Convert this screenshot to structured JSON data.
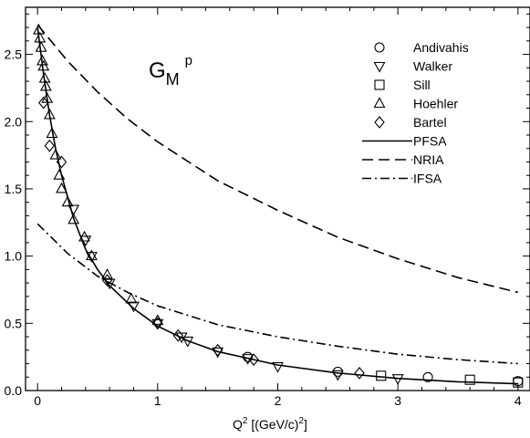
{
  "chart_data": {
    "type": "scatter",
    "title": "G",
    "title_sub": "M",
    "title_sup": "p",
    "xlabel_main": "Q",
    "xlabel_sup": "2",
    "xlabel_units": " [(GeV/c)",
    "xlabel_units_sup": "2",
    "xlabel_close": "]",
    "ylabel": "",
    "xlim": [
      -0.1,
      4.1
    ],
    "ylim": [
      0.0,
      2.85
    ],
    "x_ticks": [
      0,
      1,
      2,
      3,
      4
    ],
    "x_tick_labels": [
      "0",
      "1",
      "2",
      "3",
      "4"
    ],
    "y_ticks": [
      0.0,
      0.5,
      1.0,
      1.5,
      2.0,
      2.5
    ],
    "y_tick_labels": [
      "0.0",
      "0.5",
      "1.0",
      "1.5",
      "2.0",
      "2.5"
    ],
    "legend_position": "top-right",
    "legend": [
      {
        "label": "Andivahis",
        "kind": "marker",
        "marker": "circle"
      },
      {
        "label": "Walker",
        "kind": "marker",
        "marker": "triangle-down"
      },
      {
        "label": "Sill",
        "kind": "marker",
        "marker": "square"
      },
      {
        "label": "Hoehler",
        "kind": "marker",
        "marker": "triangle-up"
      },
      {
        "label": "Bartel",
        "kind": "marker",
        "marker": "diamond"
      },
      {
        "label": "PFSA",
        "kind": "line",
        "dash": "solid"
      },
      {
        "label": "NRIA",
        "kind": "line",
        "dash": "dashed"
      },
      {
        "label": "IFSA",
        "kind": "line",
        "dash": "dashdot"
      }
    ],
    "series": [
      {
        "name": "Andivahis",
        "marker": "circle",
        "x": [
          1.75,
          2.5,
          3.25,
          4.0
        ],
        "y": [
          0.25,
          0.14,
          0.1,
          0.07
        ]
      },
      {
        "name": "Walker",
        "marker": "triangle-down",
        "x": [
          0.3,
          0.4,
          0.45,
          0.6,
          0.8,
          1.0,
          1.2,
          1.25,
          1.5,
          1.75,
          2.0,
          2.5,
          3.0
        ],
        "y": [
          1.35,
          1.12,
          1.0,
          0.8,
          0.63,
          0.5,
          0.4,
          0.37,
          0.29,
          0.24,
          0.18,
          0.12,
          0.09
        ]
      },
      {
        "name": "Sill",
        "marker": "square",
        "x": [
          2.86,
          3.6,
          4.0
        ],
        "y": [
          0.11,
          0.08,
          0.06
        ]
      },
      {
        "name": "Hoehler",
        "marker": "triangle-up",
        "x": [
          0.01,
          0.02,
          0.03,
          0.04,
          0.05,
          0.06,
          0.07,
          0.08,
          0.1,
          0.12,
          0.15,
          0.18,
          0.2,
          0.25,
          0.3,
          0.39,
          0.45,
          0.58,
          0.78,
          1.0
        ],
        "y": [
          2.68,
          2.62,
          2.55,
          2.45,
          2.41,
          2.32,
          2.26,
          2.17,
          2.05,
          1.91,
          1.75,
          1.6,
          1.5,
          1.4,
          1.27,
          1.14,
          1.0,
          0.86,
          0.68,
          0.52
        ]
      },
      {
        "name": "Bartel",
        "marker": "diamond",
        "x": [
          0.05,
          0.1,
          0.2,
          0.58,
          1.0,
          1.17,
          1.5,
          1.8,
          2.68
        ],
        "y": [
          2.14,
          1.82,
          1.7,
          0.82,
          0.5,
          0.41,
          0.3,
          0.23,
          0.13
        ]
      },
      {
        "name": "PFSA",
        "line": "solid",
        "x": [
          0.0,
          0.05,
          0.1,
          0.15,
          0.2,
          0.3,
          0.4,
          0.5,
          0.6,
          0.8,
          1.0,
          1.25,
          1.5,
          2.0,
          2.5,
          3.0,
          3.5,
          4.0
        ],
        "y": [
          2.7,
          2.35,
          2.05,
          1.8,
          1.6,
          1.28,
          1.05,
          0.9,
          0.78,
          0.61,
          0.48,
          0.37,
          0.29,
          0.19,
          0.13,
          0.09,
          0.065,
          0.05
        ]
      },
      {
        "name": "NRIA",
        "line": "dashed",
        "x": [
          0.0,
          0.25,
          0.5,
          0.75,
          1.0,
          1.5,
          2.0,
          2.5,
          3.0,
          3.5,
          4.0
        ],
        "y": [
          2.72,
          2.45,
          2.22,
          2.02,
          1.85,
          1.56,
          1.34,
          1.14,
          0.98,
          0.84,
          0.73
        ]
      },
      {
        "name": "IFSA",
        "line": "dashdot",
        "x": [
          0.0,
          0.25,
          0.5,
          0.75,
          1.0,
          1.5,
          2.0,
          2.5,
          3.0,
          3.5,
          4.0
        ],
        "y": [
          1.24,
          1.02,
          0.85,
          0.73,
          0.63,
          0.49,
          0.4,
          0.33,
          0.27,
          0.23,
          0.2
        ]
      }
    ]
  }
}
